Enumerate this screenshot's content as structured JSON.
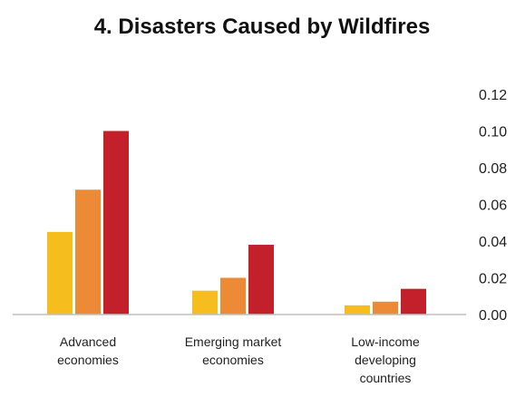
{
  "chart_data": {
    "type": "bar",
    "title": "4. Disasters Caused by Wildfires",
    "xlabel": "",
    "ylabel": "",
    "ylim": [
      0,
      0.12
    ],
    "yticks": [
      "0.00",
      "0.02",
      "0.04",
      "0.06",
      "0.08",
      "0.10",
      "0.12"
    ],
    "y_axis_side": "right",
    "grid": false,
    "legend": "none",
    "categories": [
      [
        "Advanced",
        "economies"
      ],
      [
        "Emerging market",
        "economies"
      ],
      [
        "Low-income",
        "developing",
        "countries"
      ]
    ],
    "series": [
      {
        "color": "#F5BE1E",
        "values": [
          0.045,
          0.013,
          0.005
        ]
      },
      {
        "color": "#EC8A36",
        "values": [
          0.068,
          0.02,
          0.007
        ]
      },
      {
        "color": "#C4202C",
        "values": [
          0.1,
          0.038,
          0.014
        ]
      }
    ]
  }
}
